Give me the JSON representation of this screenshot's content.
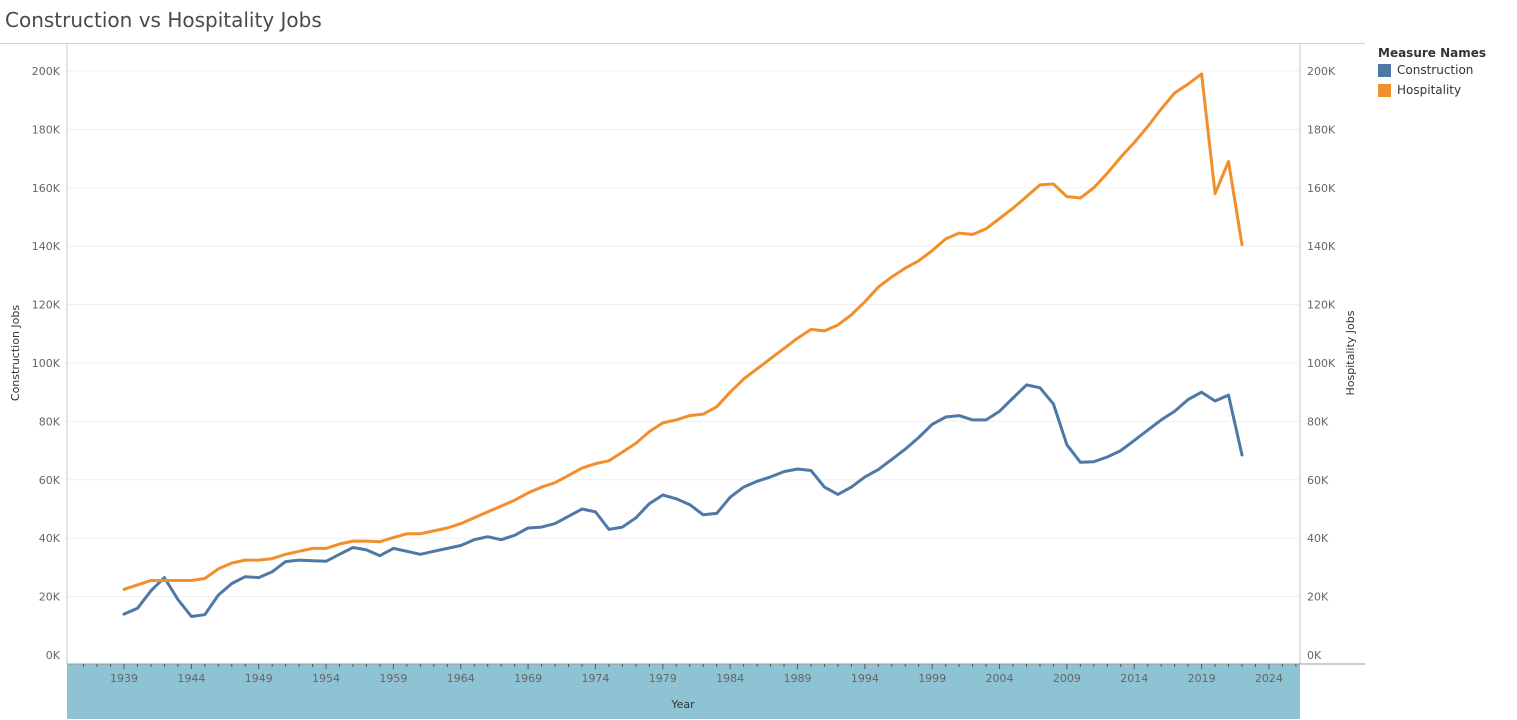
{
  "title": "Construction vs Hospitality Jobs",
  "legend": {
    "title": "Measure Names",
    "items": [
      {
        "label": "Construction",
        "color": "#4e79a7"
      },
      {
        "label": "Hospitality",
        "color": "#f28e2b"
      }
    ]
  },
  "chart_data": {
    "type": "line",
    "title": "Construction vs Hospitality Jobs",
    "xlabel": "Year",
    "ylabel_left": "Construction Jobs",
    "ylabel_right": "Hospitality Jobs",
    "xlim": [
      1936,
      2027
    ],
    "ylim": [
      0,
      210000
    ],
    "x_ticks": [
      "1939",
      "1944",
      "1949",
      "1954",
      "1959",
      "1964",
      "1969",
      "1974",
      "1979",
      "1984",
      "1989",
      "1994",
      "1999",
      "2004",
      "2009",
      "2014",
      "2019",
      "2024"
    ],
    "y_ticks": [
      "0K",
      "20K",
      "40K",
      "60K",
      "80K",
      "100K",
      "120K",
      "140K",
      "160K",
      "180K",
      "200K"
    ],
    "x_axis_band_color": "#8ec3d3",
    "grid": true,
    "legend_position": "top-right",
    "x": [
      1939,
      1940,
      1941,
      1942,
      1943,
      1944,
      1945,
      1946,
      1947,
      1948,
      1949,
      1950,
      1951,
      1952,
      1953,
      1954,
      1955,
      1956,
      1957,
      1958,
      1959,
      1960,
      1961,
      1962,
      1963,
      1964,
      1965,
      1966,
      1967,
      1968,
      1969,
      1970,
      1971,
      1972,
      1973,
      1974,
      1975,
      1976,
      1977,
      1978,
      1979,
      1980,
      1981,
      1982,
      1983,
      1984,
      1985,
      1986,
      1987,
      1988,
      1989,
      1990,
      1991,
      1992,
      1993,
      1994,
      1995,
      1996,
      1997,
      1998,
      1999,
      2000,
      2001,
      2002,
      2003,
      2004,
      2005,
      2006,
      2007,
      2008,
      2009,
      2010,
      2011,
      2012,
      2013,
      2014,
      2015,
      2016,
      2017,
      2018,
      2019,
      2020,
      2021,
      2022
    ],
    "series": [
      {
        "name": "Construction",
        "color": "#4e79a7",
        "values": [
          14000,
          16000,
          22000,
          26500,
          19000,
          13200,
          13800,
          20500,
          24500,
          26800,
          26500,
          28500,
          32000,
          32500,
          32300,
          32100,
          34500,
          36800,
          36000,
          34000,
          36500,
          35500,
          34500,
          35500,
          36500,
          37500,
          39500,
          40500,
          39500,
          41000,
          43500,
          43800,
          45000,
          47500,
          50000,
          49000,
          43000,
          43800,
          47000,
          51800,
          54800,
          53500,
          51500,
          48000,
          48500,
          54000,
          57500,
          59500,
          61000,
          62800,
          63700,
          63200,
          57500,
          55000,
          57500,
          61000,
          63500,
          67000,
          70500,
          74500,
          79000,
          81500,
          82000,
          80500,
          80500,
          83500,
          88000,
          92500,
          91500,
          86000,
          72000,
          66000,
          66200,
          67800,
          70000,
          73500,
          77000,
          80500,
          83500,
          87500,
          90000,
          87000,
          89000,
          68500
        ]
      },
      {
        "name": "Hospitality",
        "color": "#f28e2b",
        "values": [
          22500,
          24000,
          25500,
          25500,
          25500,
          25500,
          26200,
          29500,
          31500,
          32500,
          32500,
          33000,
          34500,
          35500,
          36500,
          36500,
          38000,
          39000,
          39000,
          38800,
          40200,
          41500,
          41500,
          42500,
          43500,
          45000,
          47000,
          49000,
          51000,
          53000,
          55500,
          57500,
          59000,
          61500,
          64000,
          65500,
          66500,
          69500,
          72500,
          76500,
          79500,
          80500,
          82000,
          82500,
          85000,
          90000,
          94500,
          98000,
          101500,
          105000,
          108500,
          111500,
          111000,
          113000,
          116500,
          121000,
          126000,
          129500,
          132500,
          135000,
          138500,
          142500,
          144500,
          144000,
          146000,
          149500,
          153000,
          157000,
          161000,
          161300,
          157000,
          156500,
          160000,
          165000,
          170500,
          175500,
          181000,
          187000,
          192500,
          195500,
          199000,
          158000,
          169000,
          140500
        ]
      }
    ]
  }
}
